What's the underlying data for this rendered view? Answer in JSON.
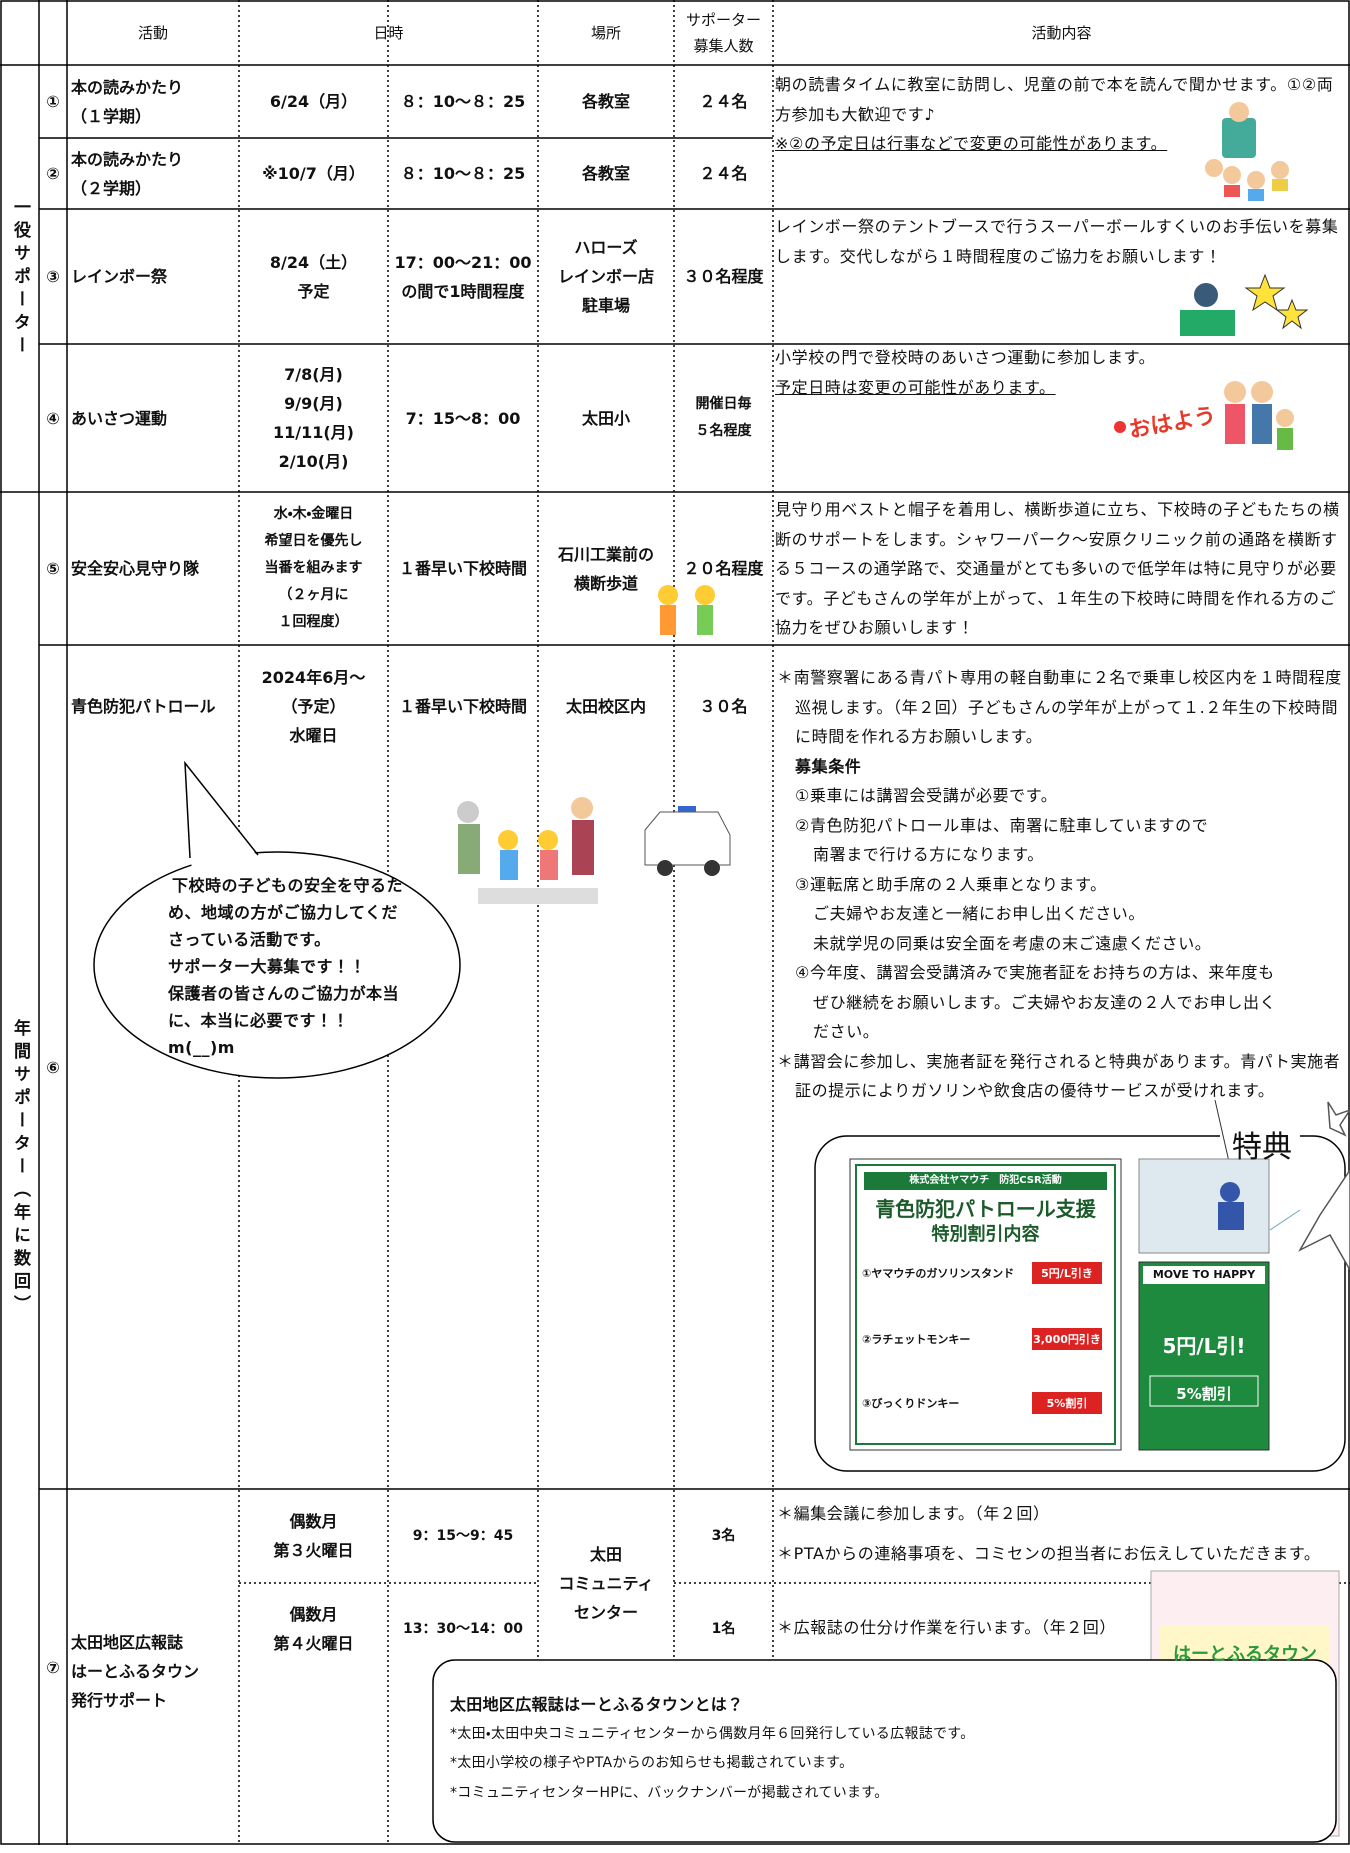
{
  "header": {
    "activity": "活動",
    "datetime": "日時",
    "place": "場所",
    "supporters": [
      "サポーター",
      "募集人数"
    ],
    "content": "活動内容"
  },
  "groups": [
    "一役サポーター",
    "年間サポーター（年に数回）"
  ],
  "rows": [
    {
      "number": "①",
      "name": [
        "本の読みかたり",
        "（１学期）"
      ],
      "date": [
        "6/24（月）"
      ],
      "time": [
        "８：10～８：25"
      ],
      "place": [
        "各教室"
      ],
      "count": [
        "２４名"
      ],
      "content": [
        "朝の読書タイムに教室に訪問し、児童の前で本を読んで聞かせます。①②両方参加も大歓迎です♪",
        "※②の予定日は行事などで変更の可能性があります。"
      ]
    },
    {
      "number": "②",
      "name": [
        "本の読みかたり",
        "（２学期）"
      ],
      "date": [
        "※10/7（月）"
      ],
      "time": [
        "８：10～８：25"
      ],
      "place": [
        "各教室"
      ],
      "count": [
        "２４名"
      ]
    },
    {
      "number": "③",
      "name": [
        "レインボー祭"
      ],
      "date": [
        "8/24（土）",
        "予定"
      ],
      "time": [
        "17：00～21：00",
        "の間で1時間程度"
      ],
      "place": [
        "ハローズ",
        "レインボー店",
        "駐車場"
      ],
      "count": [
        "３０名程度"
      ],
      "content": [
        "レインボー祭のテントブースで行うスーパーボールすくいのお手伝いを募集します。交代しながら１時間程度のご協力をお願いします！"
      ]
    },
    {
      "number": "④",
      "name": [
        "あいさつ運動"
      ],
      "date": [
        "7/8(月)",
        "9/9(月)",
        "11/11(月)",
        "2/10(月)"
      ],
      "time": [
        "7：15～8：00"
      ],
      "place": [
        "太田小"
      ],
      "count": [
        "開催日毎",
        "５名程度"
      ],
      "content": [
        "小学校の門で登校時のあいさつ運動に参加します。",
        "予定日時は変更の可能性があります。"
      ],
      "greeting": "おはよう"
    },
    {
      "number": "⑤",
      "name": [
        "安全安心見守り隊"
      ],
      "date": [
        "水・木・金曜日",
        "希望日を優先し",
        "当番を組みます",
        "（２ヶ月に",
        "１回程度）"
      ],
      "time": [
        "１番早い下校時間"
      ],
      "place": [
        "石川工業前の",
        "横断歩道"
      ],
      "count": [
        "２０名程度"
      ],
      "content": [
        "見守り用ベストと帽子を着用し、横断歩道に立ち、下校時の子どもたちの横断のサポートをします。シャワーパーク～安原クリニック前の通路を横断する５コースの通学路で、交通量がとても多いので低学年は特に見守りが必要です。子どもさんの学年が上がって、１年生の下校時に時間を作れる方のご協力をぜひお願いします！"
      ]
    },
    {
      "number": "⑥",
      "name": [
        "青色防犯パトロール"
      ],
      "date": [
        "2024年6月～",
        "（予定）",
        "水曜日"
      ],
      "time": [
        "１番早い下校時間"
      ],
      "place": [
        "太田校区内"
      ],
      "count": [
        "３０名"
      ],
      "content": [
        "＊南警察署にある青パト専用の軽自動車に２名で乗車し校区内を１時間程度巡視します。（年２回）子どもさんの学年が上がって１.２年生の下校時間に時間を作れる方お願いします。",
        "募集条件",
        "①乗車には講習会受講が必要です。",
        "②青色防犯パトロール車は、南署に駐車していますので",
        "南署まで行ける方になります。",
        "③運転席と助手席の２人乗車となります。",
        "ご夫婦やお友達と一緒にお申し出ください。",
        "未就学児の同乗は安全面を考慮の末ご遠慮ください。",
        "④今年度、講習会受講済みで実施者証をお持ちの方は、来年度も",
        "ぜひ継続をお願いします。ご夫婦やお友達の２人でお申し出く",
        "ださい。",
        "＊講習会に参加し、実施者証を発行されると特典があります。青パト実施者証の提示によりガソリンや飲食店の優待サービスが受けれます。"
      ],
      "bubble": [
        "下校時の子どもの安全を守るた",
        "め、地域の方がご協力してくだ",
        "さっている活動です。",
        "サポーター大募集です！！",
        "保護者の皆さんのご協力が本当",
        "に、本当に必要です！！",
        "m(__)m"
      ],
      "benefit": {
        "label": "特典",
        "flyer": {
          "company": "株式会社ヤマウチ　防犯CSR活動",
          "title": "青色防犯パトロール支援",
          "subtitle": "特別割引内容",
          "items": [
            {
              "shop": "①ヤマウチのガソリンスタンド",
              "deal": "5円/L引き"
            },
            {
              "shop": "②ラチェットモンキー",
              "deal": "3,000円引き"
            },
            {
              "shop": "③びっくりドンキー",
              "deal": "5%割引"
            }
          ]
        },
        "poster": {
          "title": "MOVE TO HAPPY",
          "deal1": "5円/L引!",
          "deal2": "5%割引"
        }
      }
    },
    {
      "number": "⑦",
      "name": [
        "太田地区広報誌",
        "はーとふるタウン",
        "発行サポート"
      ],
      "place": [
        "太田",
        "コミュニティ",
        "センター"
      ],
      "sessions": [
        {
          "date": [
            "偶数月",
            "第３火曜日"
          ],
          "time": "9：15～9：45",
          "count": "3名",
          "content": [
            "＊編集会議に参加します。（年２回）",
            "＊PTAからの連絡事項を、コミセンの担当者にお伝えしていただきます。"
          ]
        },
        {
          "date": [
            "偶数月",
            "第４火曜日"
          ],
          "time": "13：30～14：00",
          "count": "1名",
          "content": [
            "＊広報誌の仕分け作業を行います。（年２回）"
          ]
        }
      ],
      "about": {
        "title": "太田地区広報誌はーとふるタウンとは？",
        "lines": [
          "*太田・太田中央コミュニティセンターから偶数月年６回発行している広報誌です。",
          "*太田小学校の様子やPTAからのお知らせも掲載されています。",
          "*コミュニティセンターHPに、バックナンバーが掲載されています。"
        ]
      },
      "newsletter": "はーとふるタウン"
    }
  ]
}
